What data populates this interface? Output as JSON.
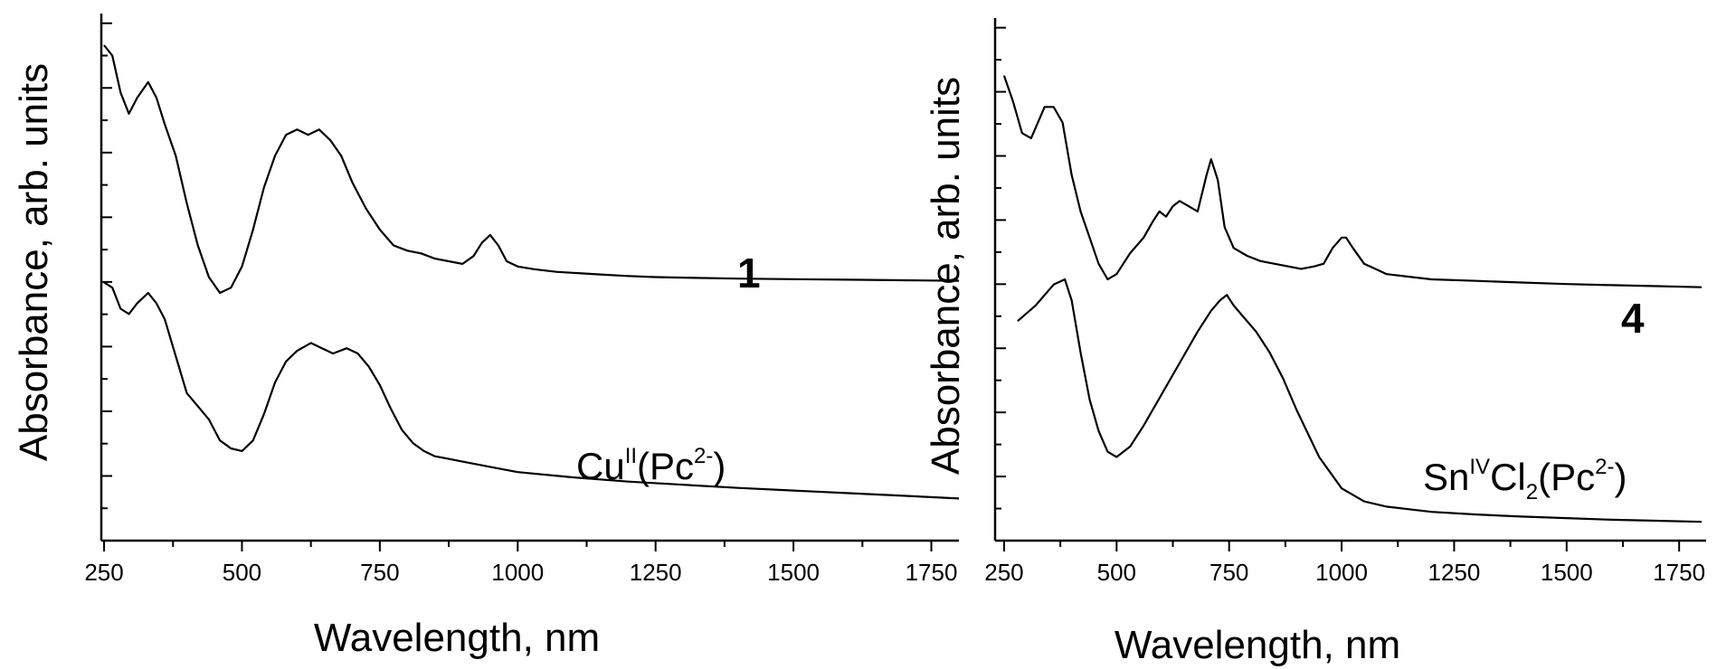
{
  "chart_data": [
    {
      "type": "line",
      "panel_number": "1",
      "compound": {
        "main": "Cu",
        "ox_sup": "II",
        "rest": "(Pc",
        "charge_sup": "2-",
        "close": ")"
      },
      "xlabel": "Wavelength, nm",
      "ylabel": "Absorbance, arb. units",
      "xlim": [
        245,
        1800
      ],
      "ylim": [
        0,
        1
      ],
      "x_ticks": [
        250,
        500,
        750,
        1000,
        1250,
        1500,
        1750
      ],
      "x_tick_labels": [
        "250",
        "500",
        "750",
        "1000",
        "1250",
        "1500",
        "1750"
      ],
      "series": [
        {
          "x": [
            250,
            265,
            280,
            295,
            310,
            330,
            345,
            360,
            380,
            400,
            420,
            440,
            460,
            480,
            500,
            520,
            540,
            560,
            580,
            600,
            620,
            640,
            660,
            680,
            700,
            725,
            750,
            775,
            800,
            825,
            850,
            875,
            900,
            920,
            935,
            950,
            965,
            980,
            1000,
            1030,
            1070,
            1100,
            1150,
            1200,
            1250,
            1300,
            1400,
            1500,
            1600,
            1700,
            1800
          ],
          "y": [
            0.94,
            0.92,
            0.85,
            0.81,
            0.84,
            0.87,
            0.84,
            0.79,
            0.73,
            0.64,
            0.56,
            0.5,
            0.47,
            0.48,
            0.52,
            0.59,
            0.67,
            0.73,
            0.77,
            0.78,
            0.77,
            0.78,
            0.76,
            0.73,
            0.68,
            0.63,
            0.59,
            0.56,
            0.55,
            0.545,
            0.535,
            0.53,
            0.525,
            0.54,
            0.565,
            0.58,
            0.56,
            0.53,
            0.52,
            0.515,
            0.51,
            0.508,
            0.505,
            0.502,
            0.5,
            0.499,
            0.497,
            0.496,
            0.495,
            0.494,
            0.493
          ]
        },
        {
          "x": [
            250,
            265,
            280,
            295,
            310,
            330,
            345,
            360,
            380,
            400,
            420,
            440,
            460,
            480,
            500,
            520,
            540,
            560,
            580,
            600,
            625,
            645,
            665,
            690,
            710,
            730,
            750,
            770,
            790,
            810,
            830,
            850,
            875,
            900,
            950,
            1000,
            1100,
            1200,
            1300,
            1400,
            1500,
            1600,
            1700,
            1800
          ],
          "y": [
            0.49,
            0.48,
            0.44,
            0.43,
            0.45,
            0.47,
            0.45,
            0.42,
            0.35,
            0.28,
            0.255,
            0.23,
            0.19,
            0.175,
            0.17,
            0.19,
            0.24,
            0.3,
            0.34,
            0.36,
            0.375,
            0.365,
            0.355,
            0.365,
            0.355,
            0.33,
            0.295,
            0.25,
            0.21,
            0.185,
            0.17,
            0.16,
            0.155,
            0.15,
            0.14,
            0.13,
            0.12,
            0.112,
            0.106,
            0.1,
            0.095,
            0.09,
            0.085,
            0.08
          ]
        }
      ]
    },
    {
      "type": "line",
      "panel_number": "4",
      "compound": {
        "main": "Sn",
        "ox_sup": "IV",
        "rest": "Cl",
        "sub": "2",
        "rest2": "(Pc",
        "charge_sup": "2-",
        "close": ")"
      },
      "xlabel": "Wavelength, nm",
      "ylabel": "Absorbance, arb. units",
      "xlim": [
        230,
        1810
      ],
      "ylim": [
        0,
        1
      ],
      "x_ticks": [
        250,
        500,
        750,
        1000,
        1250,
        1500,
        1750
      ],
      "x_tick_labels": [
        "250",
        "500",
        "750",
        "1000",
        "1250",
        "1500",
        "1750"
      ],
      "series": [
        {
          "x": [
            250,
            270,
            290,
            310,
            325,
            340,
            360,
            380,
            400,
            420,
            440,
            460,
            480,
            500,
            530,
            560,
            580,
            595,
            610,
            625,
            640,
            660,
            680,
            700,
            710,
            725,
            740,
            760,
            790,
            820,
            850,
            880,
            910,
            940,
            960,
            980,
            1000,
            1010,
            1025,
            1050,
            1100,
            1150,
            1200,
            1300,
            1400,
            1500,
            1600,
            1700,
            1800
          ],
          "y": [
            0.89,
            0.84,
            0.78,
            0.77,
            0.8,
            0.83,
            0.83,
            0.8,
            0.7,
            0.63,
            0.58,
            0.53,
            0.5,
            0.51,
            0.55,
            0.58,
            0.61,
            0.63,
            0.62,
            0.64,
            0.65,
            0.64,
            0.63,
            0.7,
            0.73,
            0.69,
            0.6,
            0.56,
            0.545,
            0.535,
            0.53,
            0.525,
            0.52,
            0.525,
            0.53,
            0.56,
            0.58,
            0.58,
            0.56,
            0.53,
            0.51,
            0.505,
            0.5,
            0.497,
            0.494,
            0.491,
            0.489,
            0.487,
            0.485
          ]
        },
        {
          "x": [
            280,
            320,
            360,
            385,
            400,
            420,
            440,
            460,
            480,
            500,
            530,
            560,
            600,
            640,
            680,
            710,
            730,
            745,
            760,
            780,
            810,
            840,
            870,
            900,
            950,
            1000,
            1050,
            1100,
            1150,
            1200,
            1300,
            1400,
            1500,
            1600,
            1700,
            1800
          ],
          "y": [
            0.42,
            0.45,
            0.49,
            0.5,
            0.46,
            0.36,
            0.27,
            0.21,
            0.17,
            0.16,
            0.18,
            0.22,
            0.28,
            0.34,
            0.4,
            0.44,
            0.46,
            0.47,
            0.45,
            0.43,
            0.4,
            0.36,
            0.31,
            0.25,
            0.16,
            0.1,
            0.075,
            0.065,
            0.06,
            0.055,
            0.05,
            0.046,
            0.043,
            0.04,
            0.038,
            0.036
          ]
        }
      ]
    }
  ]
}
